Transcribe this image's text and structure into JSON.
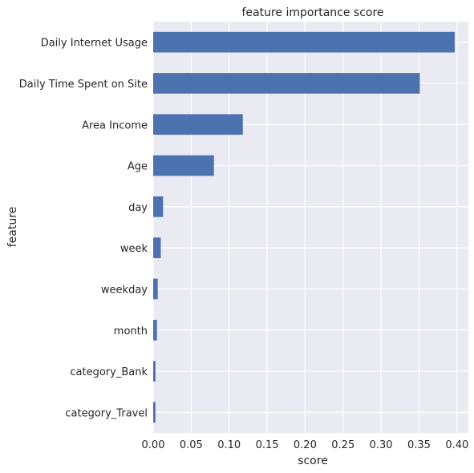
{
  "chart_data": {
    "type": "bar",
    "orientation": "horizontal",
    "title": "feature importance score",
    "xlabel": "score",
    "ylabel": "feature",
    "categories": [
      "Daily Internet Usage",
      "Daily Time Spent on Site",
      "Area Income",
      "Age",
      "day",
      "week",
      "weekday",
      "month",
      "category_Bank",
      "category_Travel"
    ],
    "values": [
      0.397,
      0.351,
      0.118,
      0.08,
      0.013,
      0.01,
      0.006,
      0.005,
      0.003,
      0.003
    ],
    "xlim": [
      0.0,
      0.415
    ],
    "xticks": [
      0.0,
      0.05,
      0.1,
      0.15,
      0.2,
      0.25,
      0.3,
      0.35,
      0.4
    ],
    "xtick_labels": [
      "0.00",
      "0.05",
      "0.10",
      "0.15",
      "0.20",
      "0.25",
      "0.30",
      "0.35",
      "0.40"
    ],
    "grid": true,
    "colors": {
      "bar": "#4c72b0",
      "plot_background": "#eaeaf2",
      "grid": "#ffffff",
      "text": "#262626"
    }
  }
}
